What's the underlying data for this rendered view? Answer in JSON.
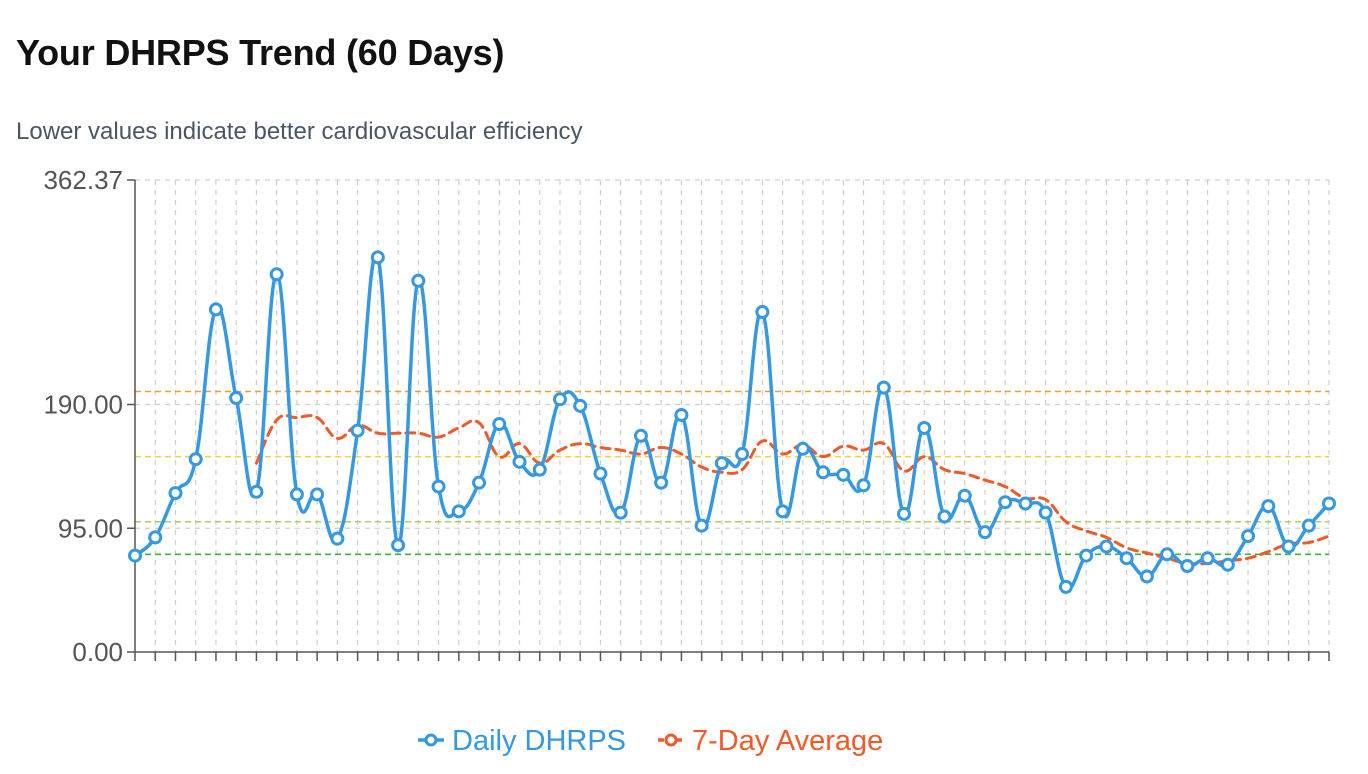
{
  "page": {
    "title": "Your DHRPS Trend (60 Days)",
    "subtitle": "Lower values indicate better cardiovascular efficiency"
  },
  "chart_data": {
    "type": "line",
    "title": "Your DHRPS Trend (60 Days)",
    "subtitle": "Lower values indicate better cardiovascular efficiency",
    "xlabel": "",
    "ylabel": "",
    "ylim": [
      0,
      362.37
    ],
    "y_ticks": [
      {
        "value": 0,
        "label": "0.00"
      },
      {
        "value": 95,
        "label": "95.00"
      },
      {
        "value": 190,
        "label": "190.00"
      },
      {
        "value": 362.37,
        "label": "362.37"
      }
    ],
    "grid": true,
    "legend_position": "bottom-center",
    "x_count": 60,
    "reference_lines": [
      {
        "value": 200,
        "color": "#f0a030"
      },
      {
        "value": 150,
        "color": "#f5d040"
      },
      {
        "value": 100,
        "color": "#a8d060"
      },
      {
        "value": 75,
        "color": "#40b040"
      }
    ],
    "series": [
      {
        "name": "Daily DHRPS",
        "color": "#3598e3",
        "values": [
          74,
          88,
          122,
          148,
          263,
          195,
          123,
          290,
          121,
          121,
          87,
          170,
          303,
          82,
          285,
          127,
          108,
          130,
          175,
          146,
          140,
          194,
          189,
          137,
          107,
          166,
          130,
          182,
          97,
          145,
          152,
          261,
          108,
          156,
          138,
          136,
          128,
          203,
          106,
          172,
          104,
          120,
          92,
          115,
          114,
          107,
          50,
          74,
          81,
          72,
          58,
          75,
          66,
          72,
          67,
          89,
          112,
          81,
          97,
          114
        ]
      },
      {
        "name": "7-Day Average",
        "color": "#f05a28",
        "values": [
          null,
          null,
          null,
          null,
          null,
          null,
          145,
          178,
          180,
          180,
          164,
          174,
          168,
          168,
          168,
          165,
          172,
          176,
          150,
          160,
          145,
          155,
          160,
          157,
          155,
          152,
          157,
          152,
          142,
          138,
          140,
          162,
          152,
          159,
          150,
          158,
          155,
          160,
          139,
          150,
          140,
          137,
          132,
          127,
          118,
          117,
          100,
          93,
          88,
          80,
          76,
          72,
          68,
          68,
          70,
          72,
          77,
          83,
          84,
          89
        ]
      }
    ]
  }
}
